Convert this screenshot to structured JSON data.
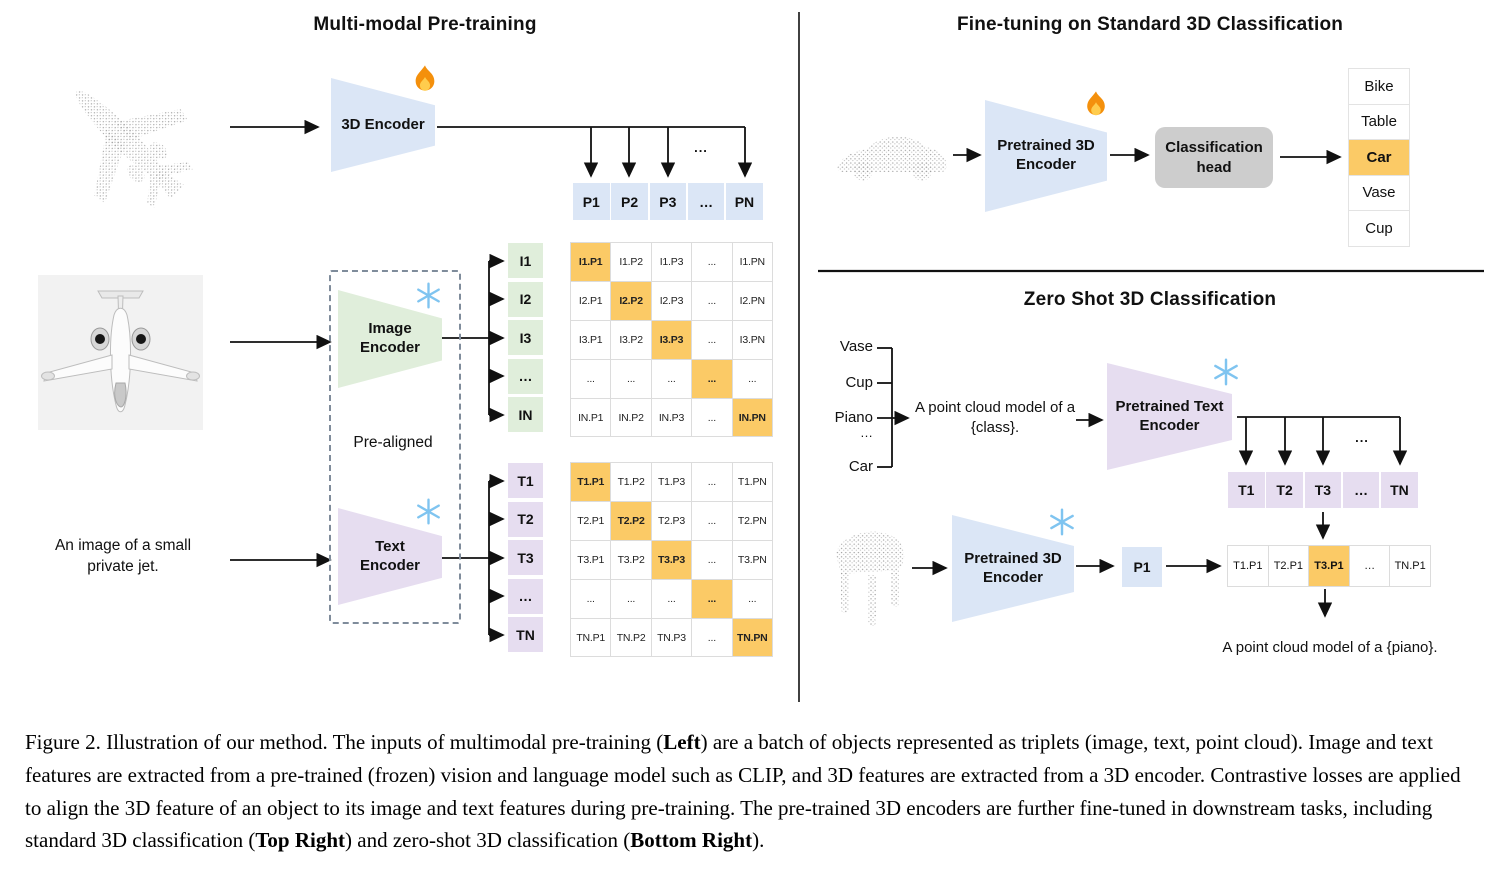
{
  "colors": {
    "blue": "#dbe6f6",
    "green": "#e0eedb",
    "purple": "#e6ddf0",
    "orange": "#fbca66",
    "gray_head": "#cdcdcd"
  },
  "left": {
    "title": "Multi-modal Pre-training",
    "encoder3d_label": "3D Encoder",
    "image_encoder_label": "Image Encoder",
    "text_encoder_label": "Text Encoder",
    "prealigned_label": "Pre-aligned",
    "image_caption": "An image of a small private jet.",
    "fan_ellipsis": "...",
    "p_row": [
      "P1",
      "P2",
      "P3",
      "…",
      "PN"
    ],
    "i_labels": [
      "I1",
      "I2",
      "I3",
      "…",
      "IN"
    ],
    "t_labels": [
      "T1",
      "T2",
      "T3",
      "…",
      "TN"
    ],
    "i_matrix": [
      [
        "I1.P1",
        "I1.P2",
        "I1.P3",
        "...",
        "I1.PN"
      ],
      [
        "I2.P1",
        "I2.P2",
        "I2.P3",
        "...",
        "I2.PN"
      ],
      [
        "I3.P1",
        "I3.P2",
        "I3.P3",
        "...",
        "I3.PN"
      ],
      [
        "...",
        "...",
        "...",
        "...",
        "..."
      ],
      [
        "IN.P1",
        "IN.P2",
        "IN.P3",
        "...",
        "IN.PN"
      ]
    ],
    "t_matrix": [
      [
        "T1.P1",
        "T1.P2",
        "T1.P3",
        "...",
        "T1.PN"
      ],
      [
        "T2.P1",
        "T2.P2",
        "T2.P3",
        "...",
        "T2.PN"
      ],
      [
        "T3.P1",
        "T3.P2",
        "T3.P3",
        "...",
        "T3.PN"
      ],
      [
        "...",
        "...",
        "...",
        "...",
        "..."
      ],
      [
        "TN.P1",
        "TN.P2",
        "TN.P3",
        "...",
        "TN.PN"
      ]
    ]
  },
  "top_right": {
    "title": "Fine-tuning on Standard 3D Classification",
    "encoder_label": "Pretrained 3D Encoder",
    "head_label": "Classification head",
    "classes": [
      "Bike",
      "Table",
      "Car",
      "Vase",
      "Cup"
    ]
  },
  "bottom_right": {
    "title": "Zero Shot 3D Classification",
    "class_list": [
      "Vase",
      "Cup",
      "Piano",
      "…",
      "Car"
    ],
    "prompt": "A point cloud model of a {class}.",
    "text_encoder_label": "Pretrained Text Encoder",
    "encoder3d_label": "Pretrained 3D Encoder",
    "p1_label": "P1",
    "fan_ellipsis": "...",
    "t_row": [
      "T1",
      "T2",
      "T3",
      "…",
      "TN"
    ],
    "tp_row": [
      "T1.P1",
      "T2.P1",
      "T3.P1",
      "…",
      "TN.P1"
    ],
    "result_prompt": "A point cloud model of a {piano}."
  },
  "caption": {
    "p1": "Figure 2. Illustration of our method. The inputs of multimodal pre-training (",
    "b1": "Left",
    "p2": ") are a batch of objects represented as triplets (image, text, point cloud).  Image and text features are extracted from a pre-trained (frozen) vision and language model such as CLIP, and 3D features are extracted from a 3D encoder.  Contrastive losses are applied to align the 3D feature of an object to its image and text features during pre-training.  The pre-trained 3D encoders are further fine-tuned in downstream tasks, including standard 3D classification (",
    "b2": "Top Right",
    "p3": ") and zero-shot 3D classification (",
    "b3": "Bottom Right",
    "p4": ")."
  }
}
